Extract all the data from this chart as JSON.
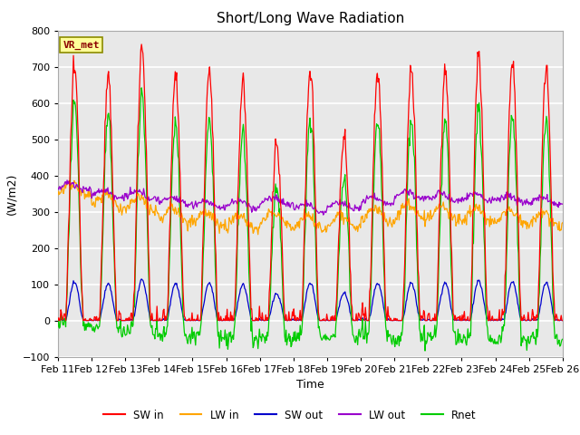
{
  "title": "Short/Long Wave Radiation",
  "xlabel": "Time",
  "ylabel": "(W/m2)",
  "ylim": [
    -100,
    800
  ],
  "yticks": [
    -100,
    0,
    100,
    200,
    300,
    400,
    500,
    600,
    700,
    800
  ],
  "date_labels": [
    "Feb 11",
    "Feb 12",
    "Feb 13",
    "Feb 14",
    "Feb 15",
    "Feb 16",
    "Feb 17",
    "Feb 18",
    "Feb 19",
    "Feb 20",
    "Feb 21",
    "Feb 22",
    "Feb 23",
    "Feb 24",
    "Feb 25",
    "Feb 26"
  ],
  "station_label": "VR_met",
  "legend_entries": [
    {
      "label": "SW in",
      "color": "#FF0000"
    },
    {
      "label": "LW in",
      "color": "#FFA500"
    },
    {
      "label": "SW out",
      "color": "#0000CC"
    },
    {
      "label": "LW out",
      "color": "#9900CC"
    },
    {
      "label": "Rnet",
      "color": "#00CC00"
    }
  ],
  "plot_bg": "#E8E8E8",
  "grid_color": "#FFFFFF",
  "fig_bg": "#FFFFFF",
  "title_fontsize": 11,
  "axis_fontsize": 9,
  "tick_fontsize": 8,
  "sw_peaks": [
    700,
    660,
    750,
    680,
    690,
    660,
    480,
    690,
    510,
    690,
    690,
    690,
    725,
    710,
    700
  ],
  "lw_in_bases": [
    360,
    330,
    320,
    290,
    280,
    270,
    280,
    270,
    275,
    290,
    300,
    295,
    290,
    285,
    280
  ],
  "lw_out_bases": [
    370,
    350,
    345,
    330,
    320,
    320,
    330,
    310,
    315,
    330,
    345,
    340,
    340,
    335,
    330
  ],
  "albedos": [
    0.15,
    0.15,
    0.15,
    0.15,
    0.15,
    0.15,
    0.15,
    0.15,
    0.15,
    0.15,
    0.15,
    0.15,
    0.15,
    0.15,
    0.15
  ]
}
